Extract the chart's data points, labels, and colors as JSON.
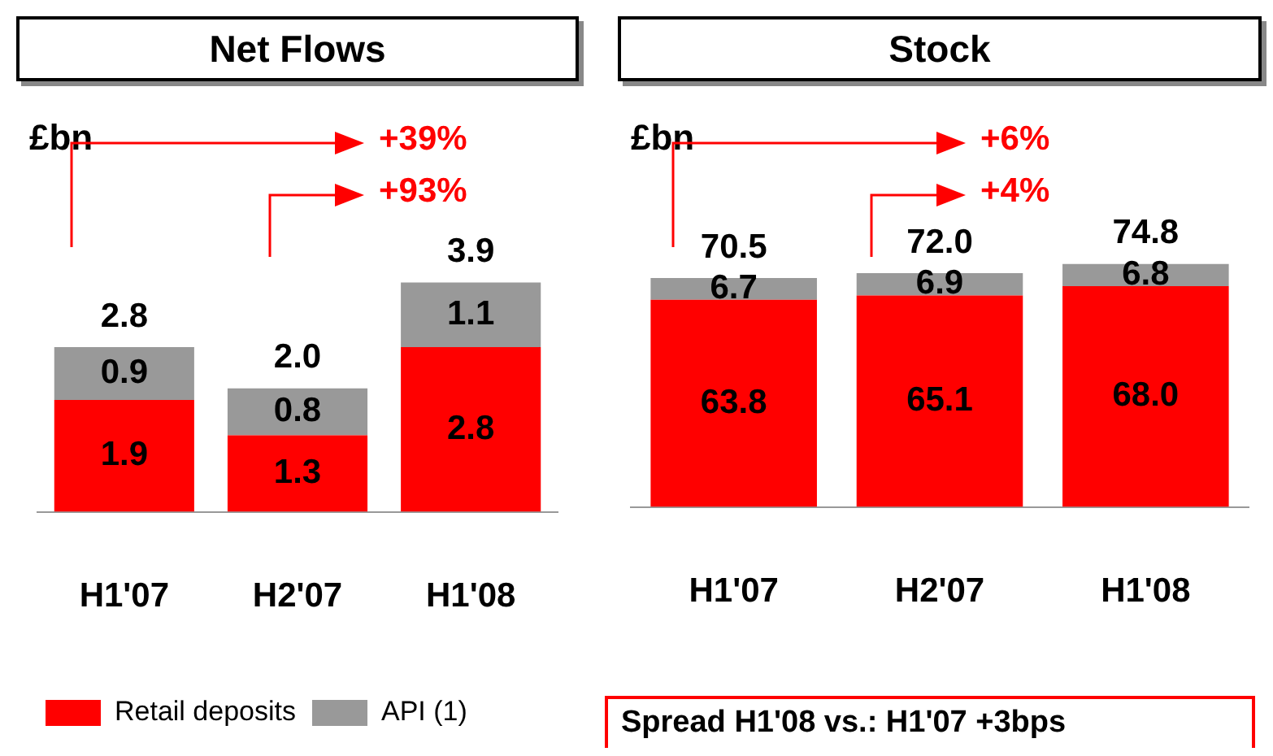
{
  "chart_data": [
    {
      "type": "bar",
      "title": "Net Flows",
      "ylabel": "£bn",
      "stacked": true,
      "categories": [
        "H1'07",
        "H2'07",
        "H1'08"
      ],
      "series": [
        {
          "name": "Retail deposits",
          "color": "#ff0000",
          "values": [
            1.9,
            1.3,
            2.8
          ]
        },
        {
          "name": "API (1)",
          "color": "#999999",
          "values": [
            0.9,
            0.8,
            1.1
          ]
        }
      ],
      "totals": [
        "2.8",
        "2.0",
        "3.9"
      ],
      "data_labels": true,
      "tick_labels": "x",
      "grid": false,
      "legend": "bottom",
      "annotations": [
        "+39%",
        "+93%"
      ]
    },
    {
      "type": "bar",
      "title": "Stock",
      "ylabel": "£bn",
      "stacked": true,
      "categories": [
        "H1'07",
        "H2'07",
        "H1'08"
      ],
      "series": [
        {
          "color": "#ff0000",
          "values": [
            63.8,
            65.1,
            68.0
          ],
          "value_labels": [
            "63.8",
            "65.1",
            "68.0"
          ]
        },
        {
          "color": "#999999",
          "values": [
            6.7,
            6.9,
            6.8
          ],
          "value_labels": [
            "6.7",
            "6.9",
            "6.8"
          ]
        }
      ],
      "totals": [
        "70.5",
        "72.0",
        "74.8"
      ],
      "tick_labels": "x",
      "grid": false,
      "legend": false,
      "annotations": [
        "+6%",
        "+4%",
        "Spread H1'08 vs.: H1'07 +3bps"
      ]
    }
  ]
}
